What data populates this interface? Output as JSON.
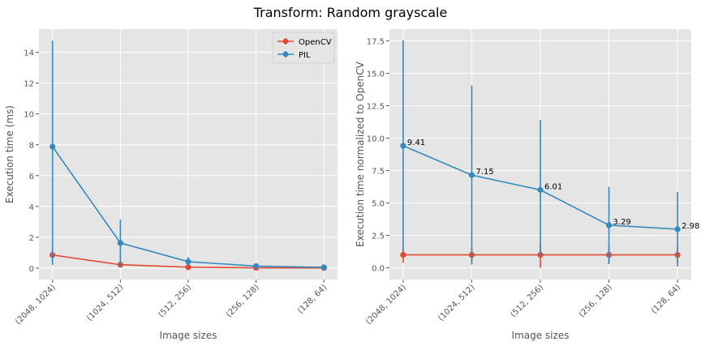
{
  "figure": {
    "title": "Transform: Random grayscale"
  },
  "colors": {
    "opencv": "#E24A33",
    "pil": "#348ABD",
    "axes_bg": "#E5E5E5",
    "grid": "#FFFFFF",
    "tick_text": "#555555"
  },
  "chart_data": [
    {
      "type": "line",
      "title": "",
      "xlabel": "Image sizes",
      "ylabel": "Execution time (ms)",
      "categories": [
        "(2048, 1024)",
        "(1024, 512)",
        "(512, 256)",
        "(256, 128)",
        "(128, 64)"
      ],
      "ylim": [
        -0.74,
        15.5
      ],
      "yticks": [
        0,
        2,
        4,
        6,
        8,
        10,
        12,
        14
      ],
      "ytick_labels": [
        "0",
        "2",
        "4",
        "6",
        "8",
        "10",
        "12",
        "14"
      ],
      "grid": true,
      "legend": "top-right",
      "series": [
        {
          "name": "OpenCV",
          "color": "#E24A33",
          "values": [
            0.85,
            0.22,
            0.06,
            0.02,
            0.01
          ],
          "err_low": [
            0.35,
            0.08,
            0.02,
            0.005,
            0.003
          ],
          "err_high": [
            1.2,
            0.38,
            0.15,
            0.08,
            0.05
          ]
        },
        {
          "name": "PIL",
          "color": "#348ABD",
          "values": [
            7.88,
            1.63,
            0.42,
            0.13,
            0.05
          ],
          "err_low": [
            0.2,
            0.1,
            0.15,
            0.03,
            0.0
          ],
          "err_high": [
            14.75,
            3.15,
            0.72,
            0.2,
            0.12
          ]
        }
      ]
    },
    {
      "type": "line",
      "title": "",
      "xlabel": "Image sizes",
      "ylabel": "Execution time normalized to OpenCV",
      "categories": [
        "(2048, 1024)",
        "(1024, 512)",
        "(512, 256)",
        "(256, 128)",
        "(128, 64)"
      ],
      "ylim": [
        -0.9,
        18.4
      ],
      "yticks": [
        0,
        2.5,
        5,
        7.5,
        10,
        12.5,
        15,
        17.5
      ],
      "ytick_labels": [
        "0.0",
        "2.5",
        "5.0",
        "7.5",
        "10.0",
        "12.5",
        "15.0",
        "17.5"
      ],
      "grid": true,
      "series": [
        {
          "name": "OpenCV",
          "color": "#E24A33",
          "values": [
            1.0,
            1.0,
            1.0,
            1.0,
            1.0
          ],
          "err_low": [
            0.4,
            0.5,
            0.0,
            0.3,
            0.3
          ],
          "err_high": [
            1.55,
            1.55,
            2.0,
            1.75,
            1.75
          ]
        },
        {
          "name": "PIL",
          "color": "#348ABD",
          "values": [
            9.41,
            7.15,
            6.01,
            3.29,
            2.98
          ],
          "err_low": [
            1.3,
            0.25,
            0.9,
            0.3,
            0.1
          ],
          "err_high": [
            17.55,
            14.05,
            11.4,
            6.25,
            5.85
          ],
          "point_labels": [
            "9.41",
            "7.15",
            "6.01",
            "3.29",
            "2.98"
          ]
        }
      ]
    }
  ]
}
